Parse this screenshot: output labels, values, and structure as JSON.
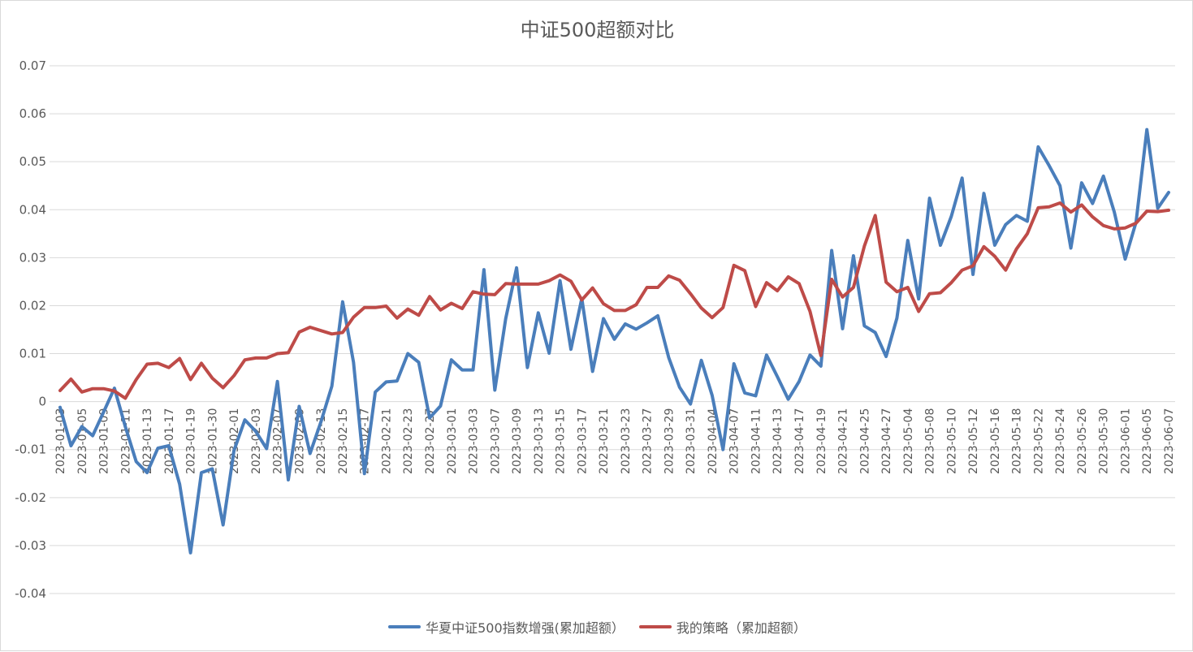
{
  "chart_data": {
    "type": "line",
    "title": "中证500超额对比",
    "xlabel": "",
    "ylabel": "",
    "ylim": [
      -0.04,
      0.07
    ],
    "yticks": [
      -0.04,
      -0.03,
      -0.02,
      -0.01,
      0,
      0.01,
      0.02,
      0.03,
      0.04,
      0.05,
      0.06,
      0.07
    ],
    "ytick_labels": [
      "-0.04",
      "-0.03",
      "-0.02",
      "-0.01",
      "0",
      "0.01",
      "0.02",
      "0.03",
      "0.04",
      "0.05",
      "0.06",
      "0.07"
    ],
    "grid": true,
    "legend_position": "bottom",
    "x": [
      "2023-01-03",
      "2023-01-04",
      "2023-01-05",
      "2023-01-06",
      "2023-01-09",
      "2023-01-10",
      "2023-01-11",
      "2023-01-12",
      "2023-01-13",
      "2023-01-16",
      "2023-01-17",
      "2023-01-18",
      "2023-01-19",
      "2023-01-20",
      "2023-01-30",
      "2023-01-31",
      "2023-02-01",
      "2023-02-02",
      "2023-02-03",
      "2023-02-06",
      "2023-02-07",
      "2023-02-08",
      "2023-02-09",
      "2023-02-10",
      "2023-02-13",
      "2023-02-14",
      "2023-02-15",
      "2023-02-16",
      "2023-02-17",
      "2023-02-20",
      "2023-02-21",
      "2023-02-22",
      "2023-02-23",
      "2023-02-24",
      "2023-02-27",
      "2023-02-28",
      "2023-03-01",
      "2023-03-02",
      "2023-03-03",
      "2023-03-06",
      "2023-03-07",
      "2023-03-08",
      "2023-03-09",
      "2023-03-10",
      "2023-03-13",
      "2023-03-14",
      "2023-03-15",
      "2023-03-16",
      "2023-03-17",
      "2023-03-20",
      "2023-03-21",
      "2023-03-22",
      "2023-03-23",
      "2023-03-24",
      "2023-03-27",
      "2023-03-28",
      "2023-03-29",
      "2023-03-30",
      "2023-03-31",
      "2023-04-03",
      "2023-04-04",
      "2023-04-06",
      "2023-04-07",
      "2023-04-10",
      "2023-04-11",
      "2023-04-12",
      "2023-04-13",
      "2023-04-14",
      "2023-04-17",
      "2023-04-18",
      "2023-04-19",
      "2023-04-20",
      "2023-04-21",
      "2023-04-24",
      "2023-04-25",
      "2023-04-26",
      "2023-04-27",
      "2023-04-28",
      "2023-05-04",
      "2023-05-05",
      "2023-05-08",
      "2023-05-09",
      "2023-05-10",
      "2023-05-11",
      "2023-05-12",
      "2023-05-15",
      "2023-05-16",
      "2023-05-17",
      "2023-05-18",
      "2023-05-19",
      "2023-05-22",
      "2023-05-23",
      "2023-05-24",
      "2023-05-25",
      "2023-05-26",
      "2023-05-29",
      "2023-05-30",
      "2023-05-31",
      "2023-06-01",
      "2023-06-02",
      "2023-06-05",
      "2023-06-06",
      "2023-06-07"
    ],
    "xtick_labels": [
      "2023-01-03",
      "2023-01-05",
      "2023-01-09",
      "2023-01-11",
      "2023-01-13",
      "2023-01-17",
      "2023-01-19",
      "2023-01-30",
      "2023-02-01",
      "2023-02-03",
      "2023-02-07",
      "2023-02-09",
      "2023-02-13",
      "2023-02-15",
      "2023-02-17",
      "2023-02-21",
      "2023-02-23",
      "2023-02-27",
      "2023-03-01",
      "2023-03-03",
      "2023-03-07",
      "2023-03-09",
      "2023-03-13",
      "2023-03-15",
      "2023-03-17",
      "2023-03-21",
      "2023-03-23",
      "2023-03-27",
      "2023-03-29",
      "2023-03-31",
      "2023-04-04",
      "2023-04-07",
      "2023-04-11",
      "2023-04-13",
      "2023-04-17",
      "2023-04-19",
      "2023-04-21",
      "2023-04-25",
      "2023-04-27",
      "2023-05-04",
      "2023-05-08",
      "2023-05-10",
      "2023-05-12",
      "2023-05-16",
      "2023-05-18",
      "2023-05-22",
      "2023-05-24",
      "2023-05-26",
      "2023-05-30",
      "2023-06-01",
      "2023-06-05",
      "2023-06-07"
    ],
    "series": [
      {
        "name": "华夏中证500指数增强(累加超额）",
        "color": "#4a7ebb",
        "values": [
          -0.0012,
          -0.0092,
          -0.0052,
          -0.0071,
          -0.0022,
          0.0028,
          -0.0052,
          -0.0125,
          -0.0148,
          -0.0097,
          -0.0092,
          -0.0172,
          -0.0315,
          -0.0148,
          -0.014,
          -0.0257,
          -0.0102,
          -0.0038,
          -0.0062,
          -0.0098,
          0.0042,
          -0.0163,
          -0.001,
          -0.0108,
          -0.0042,
          0.0032,
          0.0208,
          0.0082,
          -0.015,
          0.002,
          0.0041,
          0.0043,
          0.01,
          0.0082,
          -0.0034,
          -0.0009,
          0.0087,
          0.0066,
          0.0066,
          0.0275,
          0.0024,
          0.0173,
          0.0279,
          0.0071,
          0.0185,
          0.0101,
          0.0252,
          0.0109,
          0.0215,
          0.0063,
          0.0173,
          0.013,
          0.0162,
          0.0151,
          0.0164,
          0.0179,
          0.0092,
          0.003,
          -0.0005,
          0.0086,
          0.0013,
          -0.01,
          0.0079,
          0.0018,
          0.0012,
          0.0097,
          0.0052,
          0.0005,
          0.0042,
          0.0097,
          0.0074,
          0.0315,
          0.0152,
          0.0304,
          0.0158,
          0.0144,
          0.0094,
          0.0174,
          0.0336,
          0.0214,
          0.0424,
          0.0326,
          0.0386,
          0.0466,
          0.0265,
          0.0434,
          0.0326,
          0.0369,
          0.0388,
          0.0376,
          0.0531,
          0.0492,
          0.045,
          0.032,
          0.0456,
          0.0413,
          0.047,
          0.0395,
          0.0297,
          0.0374,
          0.0567,
          0.0403,
          0.0436
        ]
      },
      {
        "name": "我的策略（累加超额）",
        "color": "#be4b48",
        "values": [
          0.0023,
          0.0047,
          0.002,
          0.0027,
          0.0027,
          0.0022,
          0.0007,
          0.0046,
          0.0078,
          0.008,
          0.0071,
          0.009,
          0.0046,
          0.008,
          0.0049,
          0.0029,
          0.0054,
          0.0087,
          0.0091,
          0.0091,
          0.01,
          0.0102,
          0.0145,
          0.0155,
          0.0148,
          0.0141,
          0.0144,
          0.0176,
          0.0196,
          0.0196,
          0.0199,
          0.0174,
          0.0193,
          0.018,
          0.0219,
          0.0191,
          0.0205,
          0.0194,
          0.0229,
          0.0224,
          0.0223,
          0.0246,
          0.0245,
          0.0245,
          0.0245,
          0.0252,
          0.0264,
          0.0251,
          0.0212,
          0.0237,
          0.0204,
          0.019,
          0.019,
          0.0202,
          0.0238,
          0.0238,
          0.0262,
          0.0253,
          0.0225,
          0.0195,
          0.0175,
          0.0196,
          0.0284,
          0.0273,
          0.0198,
          0.0248,
          0.0231,
          0.026,
          0.0246,
          0.0188,
          0.0096,
          0.0255,
          0.0218,
          0.0238,
          0.0324,
          0.0388,
          0.0249,
          0.0229,
          0.0238,
          0.0188,
          0.0225,
          0.0227,
          0.0248,
          0.0274,
          0.0283,
          0.0323,
          0.0303,
          0.0274,
          0.0318,
          0.035,
          0.0404,
          0.0406,
          0.0414,
          0.0395,
          0.041,
          0.0385,
          0.0367,
          0.036,
          0.0362,
          0.0372,
          0.0397,
          0.0396,
          0.0399
        ]
      }
    ]
  }
}
